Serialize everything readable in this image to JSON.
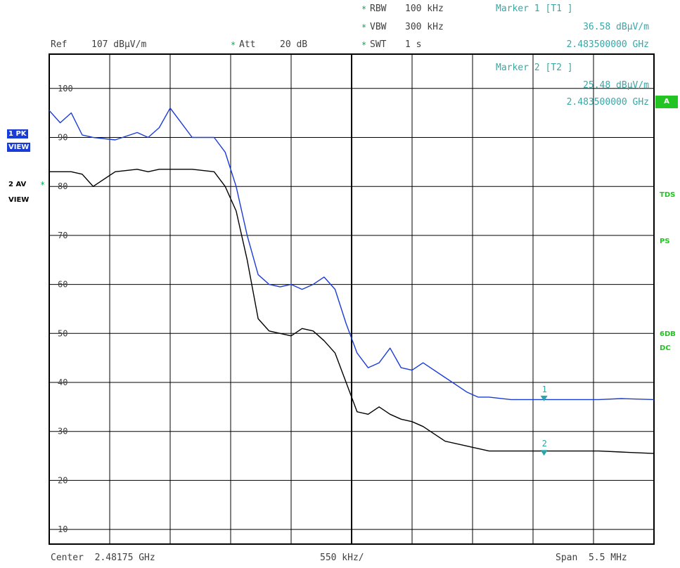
{
  "header": {
    "rbw_label": "RBW",
    "rbw_value": "100 kHz",
    "vbw_label": "VBW",
    "vbw_value": "300 kHz",
    "swt_label": "SWT",
    "swt_value": "1 s",
    "ref_label": "Ref",
    "ref_value": "107 dBµV/m",
    "att_label": "Att",
    "att_value": "20 dB",
    "star": "*"
  },
  "markers": {
    "m1_title": "Marker 1 [T1 ]",
    "m1_level": "36.58 dBµV/m",
    "m1_freq": "2.483500000 GHz",
    "m2_title": "Marker 2 [T2 ]",
    "m2_level": "25.48 dBµV/m",
    "m2_freq": "2.483500000 GHz"
  },
  "left_labels": {
    "trace1_tag": "1 PK",
    "trace1_view": "VIEW",
    "trace2_tag": "2 AV",
    "trace2_view": "VIEW"
  },
  "right_labels": {
    "a_box": "A",
    "tds": "TDS",
    "ps": "PS",
    "sixdb": "6DB",
    "dc": "DC"
  },
  "footer": {
    "center": "Center  2.48175 GHz",
    "div": "550 kHz/",
    "span": "Span  5.5 MHz"
  },
  "colors": {
    "pk_trace": "#1a3cd6",
    "av_trace": "#000000",
    "marker": "#2aa6a6",
    "status_green": "#22c422",
    "grid": "#000000"
  },
  "chart_data": {
    "type": "line",
    "title": "",
    "xlabel": "",
    "ylabel": "",
    "x_unit": "GHz",
    "y_unit": "dBµV/m",
    "xlim": [
      2.479,
      2.4845
    ],
    "ylim": [
      7,
      107
    ],
    "y_ticks": [
      10,
      20,
      30,
      40,
      50,
      60,
      70,
      80,
      90,
      100
    ],
    "center_line_x": 2.48175,
    "grid": true,
    "series": [
      {
        "name": "1 PK",
        "x": [
          2.479,
          2.4791,
          2.4792,
          2.4793,
          2.4794,
          2.4796,
          2.4798,
          2.4799,
          2.48,
          2.4801,
          2.4803,
          2.4805,
          2.4806,
          2.4807,
          2.4808,
          2.4809,
          2.481,
          2.4811,
          2.4812,
          2.4813,
          2.4814,
          2.4815,
          2.4816,
          2.4817,
          2.4818,
          2.4819,
          2.482,
          2.4821,
          2.4822,
          2.4823,
          2.4824,
          2.4826,
          2.4828,
          2.4829,
          2.483,
          2.4832,
          2.4834,
          2.4836,
          2.4838,
          2.484,
          2.4842,
          2.4845
        ],
        "y": [
          95.5,
          93,
          95,
          90.5,
          90,
          89.5,
          91,
          90,
          92,
          96,
          90,
          90,
          87,
          80,
          70,
          62,
          60,
          59.5,
          60,
          59,
          60,
          61.5,
          59,
          52,
          46,
          43,
          44,
          47,
          43,
          42.5,
          44,
          41,
          38,
          37,
          37,
          36.5,
          36.5,
          36.5,
          36.5,
          36.5,
          36.7,
          36.5
        ]
      },
      {
        "name": "2 AV",
        "x": [
          2.479,
          2.4791,
          2.4792,
          2.4793,
          2.4794,
          2.4796,
          2.4798,
          2.4799,
          2.48,
          2.4801,
          2.4803,
          2.4805,
          2.4806,
          2.4807,
          2.4808,
          2.4809,
          2.481,
          2.4811,
          2.4812,
          2.4813,
          2.4814,
          2.4815,
          2.4816,
          2.4817,
          2.4818,
          2.4819,
          2.482,
          2.4821,
          2.4822,
          2.4823,
          2.4824,
          2.4826,
          2.4828,
          2.4829,
          2.483,
          2.4832,
          2.4834,
          2.4836,
          2.4838,
          2.484,
          2.4842,
          2.4845
        ],
        "y": [
          83,
          83,
          83,
          82.5,
          80,
          83,
          83.5,
          83,
          83.5,
          83.5,
          83.5,
          83,
          80,
          75,
          65,
          53,
          50.5,
          50,
          49.5,
          51,
          50.5,
          48.5,
          46,
          40,
          34,
          33.5,
          35,
          33.5,
          32.5,
          32,
          31,
          28,
          27,
          26.5,
          26,
          26,
          26,
          26,
          26,
          26,
          25.8,
          25.5
        ]
      }
    ],
    "markers": [
      {
        "label": "1",
        "x": 2.4835,
        "y": 36.58
      },
      {
        "label": "2",
        "x": 2.4835,
        "y": 25.48
      }
    ]
  }
}
